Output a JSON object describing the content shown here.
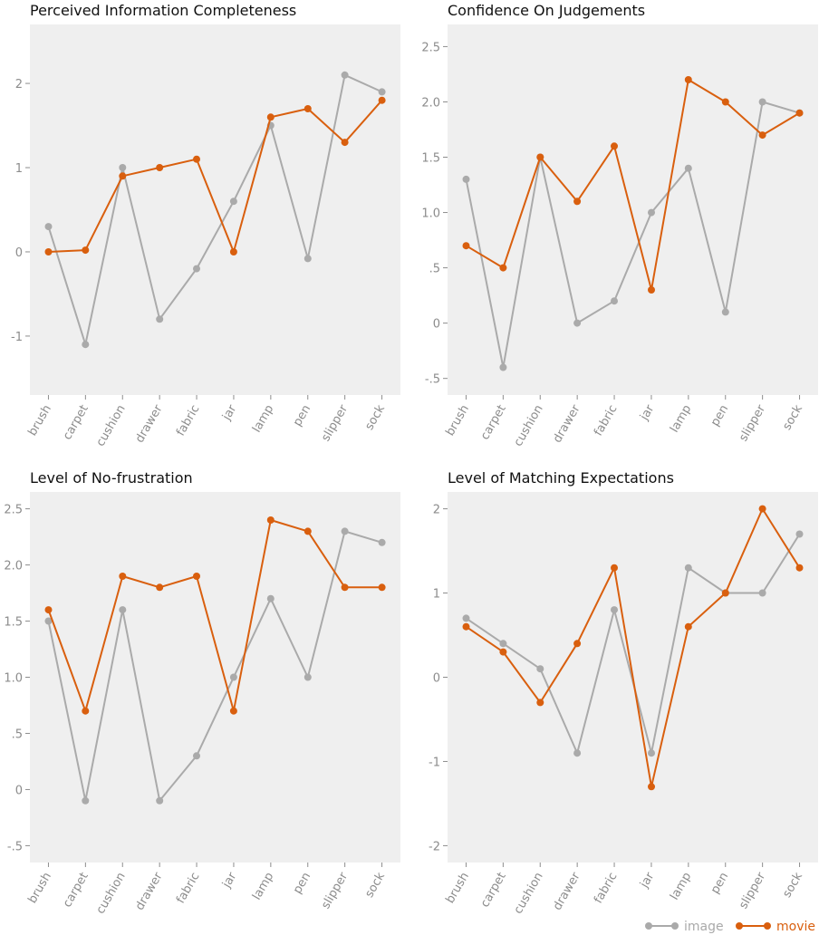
{
  "chart_data": [
    {
      "type": "line",
      "title": "Perceived Information Completeness",
      "categories": [
        "brush",
        "carpet",
        "cushion",
        "drawer",
        "fabric",
        "jar",
        "lamp",
        "pen",
        "slipper",
        "sock"
      ],
      "ylim": [
        -1.7,
        2.7
      ],
      "yticks": [
        -1,
        0,
        1,
        2
      ],
      "ytick_labels": [
        "-1",
        "0",
        "1",
        "2"
      ],
      "series": [
        {
          "name": "image",
          "color": "#aaaaaa",
          "values": [
            0.3,
            -1.1,
            1.0,
            -0.8,
            -0.2,
            0.6,
            1.5,
            -0.08,
            2.1,
            1.9
          ]
        },
        {
          "name": "movie",
          "color": "#d95f0e",
          "values": [
            0.0,
            0.02,
            0.9,
            1.0,
            1.1,
            0.0,
            1.6,
            1.7,
            1.3,
            1.8
          ]
        }
      ],
      "grid": false
    },
    {
      "type": "line",
      "title": "Confidence On Judgements",
      "categories": [
        "brush",
        "carpet",
        "cushion",
        "drawer",
        "fabric",
        "jar",
        "lamp",
        "pen",
        "slipper",
        "sock"
      ],
      "ylim": [
        -0.65,
        2.7
      ],
      "yticks": [
        -0.5,
        0,
        0.5,
        1.0,
        1.5,
        2.0,
        2.5
      ],
      "ytick_labels": [
        "-.5",
        "0",
        ".5",
        "1.0",
        "1.5",
        "2.0",
        "2.5"
      ],
      "series": [
        {
          "name": "image",
          "color": "#aaaaaa",
          "values": [
            1.3,
            -0.4,
            1.5,
            0.0,
            0.2,
            1.0,
            1.4,
            0.1,
            2.0,
            1.9
          ]
        },
        {
          "name": "movie",
          "color": "#d95f0e",
          "values": [
            0.7,
            0.5,
            1.5,
            1.1,
            1.6,
            0.3,
            2.2,
            2.0,
            1.7,
            1.9
          ]
        }
      ],
      "grid": false
    },
    {
      "type": "line",
      "title": "Level of No-frustration",
      "categories": [
        "brush",
        "carpet",
        "cushion",
        "drawer",
        "fabric",
        "jar",
        "lamp",
        "pen",
        "slipper",
        "sock"
      ],
      "ylim": [
        -0.65,
        2.65
      ],
      "yticks": [
        -0.5,
        0,
        0.5,
        1.0,
        1.5,
        2.0,
        2.5
      ],
      "ytick_labels": [
        "-.5",
        "0",
        ".5",
        "1.0",
        "1.5",
        "2.0",
        "2.5"
      ],
      "series": [
        {
          "name": "image",
          "color": "#aaaaaa",
          "values": [
            1.5,
            -0.1,
            1.6,
            -0.1,
            0.3,
            1.0,
            1.7,
            1.0,
            2.3,
            2.2
          ]
        },
        {
          "name": "movie",
          "color": "#d95f0e",
          "values": [
            1.6,
            0.7,
            1.9,
            1.8,
            1.9,
            0.7,
            2.4,
            2.3,
            1.8,
            1.8
          ]
        }
      ],
      "grid": false
    },
    {
      "type": "line",
      "title": "Level of Matching Expectations",
      "categories": [
        "brush",
        "carpet",
        "cushion",
        "drawer",
        "fabric",
        "jar",
        "lamp",
        "pen",
        "slipper",
        "sock"
      ],
      "ylim": [
        -2.2,
        2.2
      ],
      "yticks": [
        -2,
        -1,
        0,
        1,
        2
      ],
      "ytick_labels": [
        "-2",
        "-1",
        "0",
        "1",
        "2"
      ],
      "series": [
        {
          "name": "image",
          "color": "#aaaaaa",
          "values": [
            0.7,
            0.4,
            0.1,
            -0.9,
            0.8,
            -0.9,
            1.3,
            1.0,
            1.0,
            1.7
          ]
        },
        {
          "name": "movie",
          "color": "#d95f0e",
          "values": [
            0.6,
            0.3,
            -0.3,
            0.4,
            1.3,
            -1.3,
            0.6,
            1.0,
            2.0,
            1.3
          ]
        }
      ],
      "grid": false
    }
  ],
  "legend": {
    "placement": "bottom-right",
    "items": [
      {
        "label": "image",
        "color": "#aaaaaa"
      },
      {
        "label": "movie",
        "color": "#d95f0e"
      }
    ]
  }
}
